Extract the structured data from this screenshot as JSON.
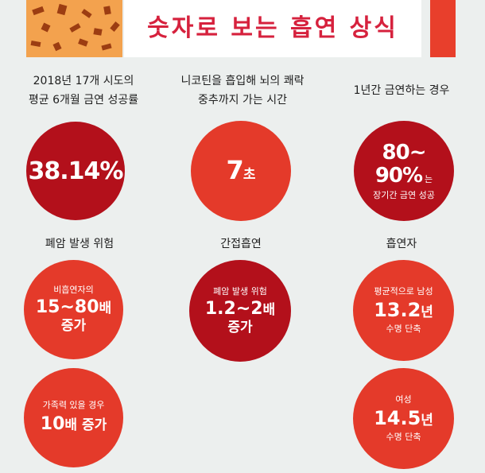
{
  "header": {
    "title": "숫자로 보는 흡연 상식"
  },
  "stats": [
    {
      "caption_lines": [
        "2018년 17개 시도의",
        "평균 6개월 금연 성공률"
      ],
      "value": "38.14%"
    },
    {
      "caption_lines": [
        "니코틴을 흡입해 뇌의 쾌락",
        "중추까지 가는 시간"
      ],
      "value": "7",
      "unit": "초"
    },
    {
      "caption_lines": [
        "1년간 금연하는 경우"
      ],
      "value_line1": "80~",
      "value_line2": "90%",
      "value_suffix": "는",
      "sub": "장기간 금연 성공"
    },
    {
      "caption": "폐암 발생 위험",
      "circles": [
        {
          "top": "비흡연자의",
          "value": "15~80",
          "unit": "배",
          "bottom": "증가"
        },
        {
          "top": "가족력 있을 경우",
          "value": "10",
          "unit": "배 증가"
        }
      ]
    },
    {
      "caption": "간접흡연",
      "top": "폐암 발생 위험",
      "value": "1.2~2",
      "unit": "배",
      "bottom": "증가"
    },
    {
      "caption": "흡연자",
      "circles": [
        {
          "top": "평균적으로 남성",
          "value": "13.2",
          "unit": "년",
          "bottom": "수명 단축"
        },
        {
          "top": "여성",
          "value": "14.5",
          "unit": "년",
          "bottom": "수명 단축"
        }
      ]
    }
  ],
  "colors": {
    "red": "#e43a2a",
    "dark_red": "#b3101b",
    "title_red": "#d6213d",
    "orange": "#f3a24e"
  },
  "icons": [
    "confetti-pattern"
  ]
}
